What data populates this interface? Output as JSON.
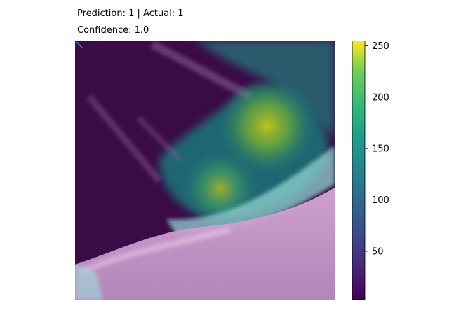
{
  "chart_data": {
    "type": "heatmap",
    "title_lines": [
      "Prediction: 1 | Actual: 1",
      "Confidence: 1.0"
    ],
    "colormap": "viridis",
    "colorbar": {
      "range": [
        3,
        255
      ],
      "ticks": [
        50,
        100,
        150,
        200,
        250
      ]
    },
    "axes_visible": false,
    "overlay": {
      "description_hidden": true,
      "hotspots": [
        {
          "cx": 0.74,
          "cy": 0.33,
          "value": 235
        },
        {
          "cx": 0.56,
          "cy": 0.57,
          "value": 210
        }
      ]
    },
    "colors": {
      "viridis_low": "#440154",
      "viridis_mid": "#21918c",
      "viridis_high": "#fde725"
    }
  }
}
